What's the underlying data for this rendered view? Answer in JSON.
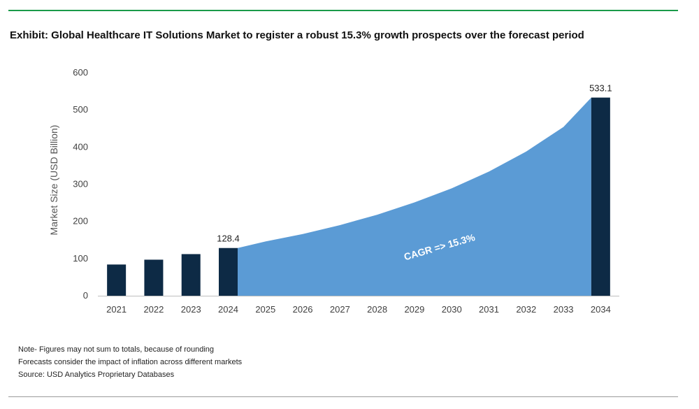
{
  "title": "Exhibit: Global Healthcare IT Solutions Market to register a robust 15.3% growth prospects over the forecast period",
  "notes": [
    "Note- Figures may not sum to totals, because of rounding",
    "Forecasts consider the impact of inflation across different markets",
    "Source: USD Analytics Proprietary Databases"
  ],
  "colors": {
    "bar": "#0d2a45",
    "area": "#5b9bd5",
    "rule_top": "#1a9a4a",
    "axis": "#bfbfbf"
  },
  "chart_data": {
    "type": "bar",
    "ylabel": "Market Size (USD Billion)",
    "ylim": [
      0,
      600
    ],
    "yticks": [
      0,
      100,
      200,
      300,
      400,
      500,
      600
    ],
    "categories": [
      "2021",
      "2022",
      "2023",
      "2024",
      "2025",
      "2026",
      "2027",
      "2028",
      "2029",
      "2030",
      "2031",
      "2032",
      "2033",
      "2034"
    ],
    "bars": [
      {
        "category": "2021",
        "value": 84
      },
      {
        "category": "2022",
        "value": 97
      },
      {
        "category": "2023",
        "value": 112
      },
      {
        "category": "2024",
        "value": 128.4,
        "label": "128.4"
      },
      {
        "category": "2034",
        "value": 533.1,
        "label": "533.1"
      }
    ],
    "area": {
      "categories": [
        "2024",
        "2025",
        "2026",
        "2027",
        "2028",
        "2029",
        "2030",
        "2031",
        "2032",
        "2033",
        "2034"
      ],
      "values": [
        128.4,
        146,
        166,
        190,
        218,
        251,
        289,
        334,
        388,
        454,
        533.1
      ]
    },
    "annotation": "CAGR => 15.3%",
    "grid": false,
    "legend": "none"
  }
}
